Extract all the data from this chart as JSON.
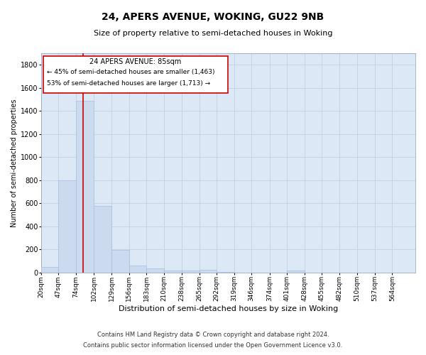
{
  "title": "24, APERS AVENUE, WOKING, GU22 9NB",
  "subtitle": "Size of property relative to semi-detached houses in Woking",
  "xlabel": "Distribution of semi-detached houses by size in Woking",
  "ylabel": "Number of semi-detached properties",
  "footnote1": "Contains HM Land Registry data © Crown copyright and database right 2024.",
  "footnote2": "Contains public sector information licensed under the Open Government Licence v3.0.",
  "annotation_title": "24 APERS AVENUE: 85sqm",
  "annotation_line1": "← 45% of semi-detached houses are smaller (1,463)",
  "annotation_line2": "53% of semi-detached houses are larger (1,713) →",
  "property_size": 85,
  "bar_color": "#ccdaf0",
  "bar_edge_color": "#a8bedd",
  "red_line_color": "#cc0000",
  "annotation_box_color": "#cc0000",
  "grid_color": "#c5cfe0",
  "bg_color": "#dce8f5",
  "bins": [
    20,
    47,
    74,
    102,
    129,
    156,
    183,
    210,
    238,
    265,
    292,
    319,
    346,
    374,
    401,
    428,
    455,
    482,
    510,
    537,
    564,
    600
  ],
  "counts": [
    50,
    800,
    1490,
    580,
    195,
    60,
    38,
    20,
    15,
    25,
    5,
    0,
    0,
    0,
    20,
    0,
    0,
    0,
    0,
    0,
    0
  ],
  "ylim": [
    0,
    1900
  ],
  "yticks": [
    0,
    200,
    400,
    600,
    800,
    1000,
    1200,
    1400,
    1600,
    1800
  ],
  "tick_labels": [
    "20sqm",
    "47sqm",
    "74sqm",
    "102sqm",
    "129sqm",
    "156sqm",
    "183sqm",
    "210sqm",
    "238sqm",
    "265sqm",
    "292sqm",
    "319sqm",
    "346sqm",
    "374sqm",
    "401sqm",
    "428sqm",
    "455sqm",
    "482sqm",
    "510sqm",
    "537sqm",
    "564sqm"
  ],
  "title_fontsize": 10,
  "subtitle_fontsize": 8,
  "xlabel_fontsize": 8,
  "ylabel_fontsize": 7,
  "xtick_fontsize": 6.5,
  "ytick_fontsize": 7,
  "footnote_fontsize": 6,
  "annot_title_fontsize": 7,
  "annot_text_fontsize": 6.5
}
